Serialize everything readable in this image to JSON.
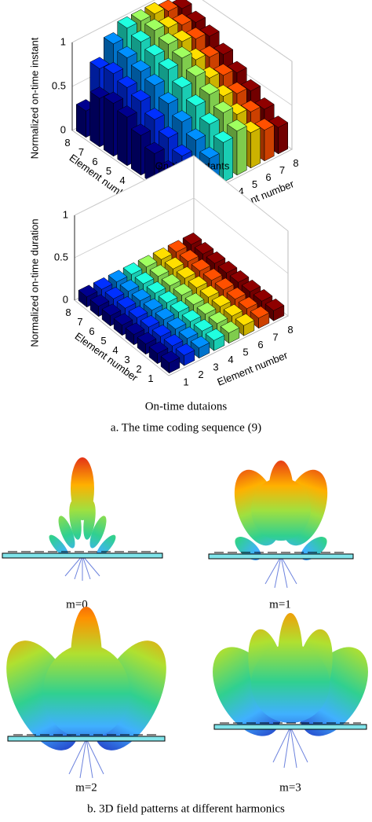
{
  "chart_data": [
    {
      "type": "bar3d",
      "title": "On-time instants",
      "zlabel": "Normalized on-time instant",
      "xlabel": "Element number",
      "ylabel": "Element number",
      "x": [
        1,
        2,
        3,
        4,
        5,
        6,
        7,
        8
      ],
      "y": [
        1,
        2,
        3,
        4,
        5,
        6,
        7,
        8
      ],
      "zlim": [
        0,
        1
      ],
      "zticks": [
        0,
        0.5,
        1
      ],
      "colors": [
        "#00008f",
        "#0030ff",
        "#0090ff",
        "#20ffdf",
        "#9fff60",
        "#ffdf00",
        "#ff5000",
        "#8f0000"
      ],
      "values": [
        [
          0.15,
          0.25,
          0.35,
          0.45,
          0.5,
          0.4,
          0.35,
          0.3
        ],
        [
          0.25,
          0.35,
          0.45,
          0.55,
          0.6,
          0.5,
          0.45,
          0.4
        ],
        [
          0.35,
          0.45,
          0.55,
          0.65,
          0.7,
          0.6,
          0.55,
          0.5
        ],
        [
          0.45,
          0.55,
          0.65,
          0.75,
          0.8,
          0.7,
          0.65,
          0.6
        ],
        [
          0.55,
          0.65,
          0.75,
          0.85,
          0.9,
          0.8,
          0.75,
          0.7
        ],
        [
          0.6,
          0.7,
          0.8,
          0.9,
          0.95,
          0.9,
          0.85,
          0.8
        ],
        [
          0.55,
          0.75,
          0.85,
          0.95,
          1,
          0.95,
          0.9,
          0.85
        ],
        [
          0.3,
          0.7,
          0.9,
          1,
          1,
          1,
          0.95,
          0.9
        ]
      ]
    },
    {
      "type": "bar3d",
      "title": "On-time dutaions",
      "zlabel": "Normalized on-time duration",
      "xlabel": "Element number",
      "ylabel": "Element number",
      "x": [
        1,
        2,
        3,
        4,
        5,
        6,
        7,
        8
      ],
      "y": [
        1,
        2,
        3,
        4,
        5,
        6,
        7,
        8
      ],
      "zlim": [
        0,
        1
      ],
      "zticks": [
        0,
        0.5,
        1
      ],
      "colors": [
        "#00008f",
        "#0030ff",
        "#0090ff",
        "#20ffdf",
        "#9fff60",
        "#ffdf00",
        "#ff5000",
        "#8f0000"
      ],
      "values": [
        [
          0.12,
          0.12,
          0.12,
          0.12,
          0.12,
          0.12,
          0.12,
          0.12
        ],
        [
          0.12,
          0.12,
          0.12,
          0.12,
          0.12,
          0.12,
          0.12,
          0.12
        ],
        [
          0.12,
          0.12,
          0.12,
          0.12,
          0.12,
          0.12,
          0.12,
          0.12
        ],
        [
          0.12,
          0.12,
          0.12,
          0.12,
          0.12,
          0.12,
          0.12,
          0.12
        ],
        [
          0.12,
          0.12,
          0.12,
          0.12,
          0.12,
          0.12,
          0.12,
          0.12
        ],
        [
          0.12,
          0.12,
          0.12,
          0.12,
          0.12,
          0.12,
          0.12,
          0.12
        ],
        [
          0.12,
          0.12,
          0.12,
          0.12,
          0.12,
          0.12,
          0.12,
          0.12
        ],
        [
          0.12,
          0.12,
          0.12,
          0.12,
          0.12,
          0.12,
          0.12,
          0.12
        ]
      ]
    }
  ],
  "captions": {
    "a": "a. The time coding sequence (9)",
    "b": "b. 3D field patterns at different harmonics"
  },
  "patterns": [
    {
      "label": "m=0"
    },
    {
      "label": "m=1"
    },
    {
      "label": "m=2"
    },
    {
      "label": "m=3"
    }
  ]
}
